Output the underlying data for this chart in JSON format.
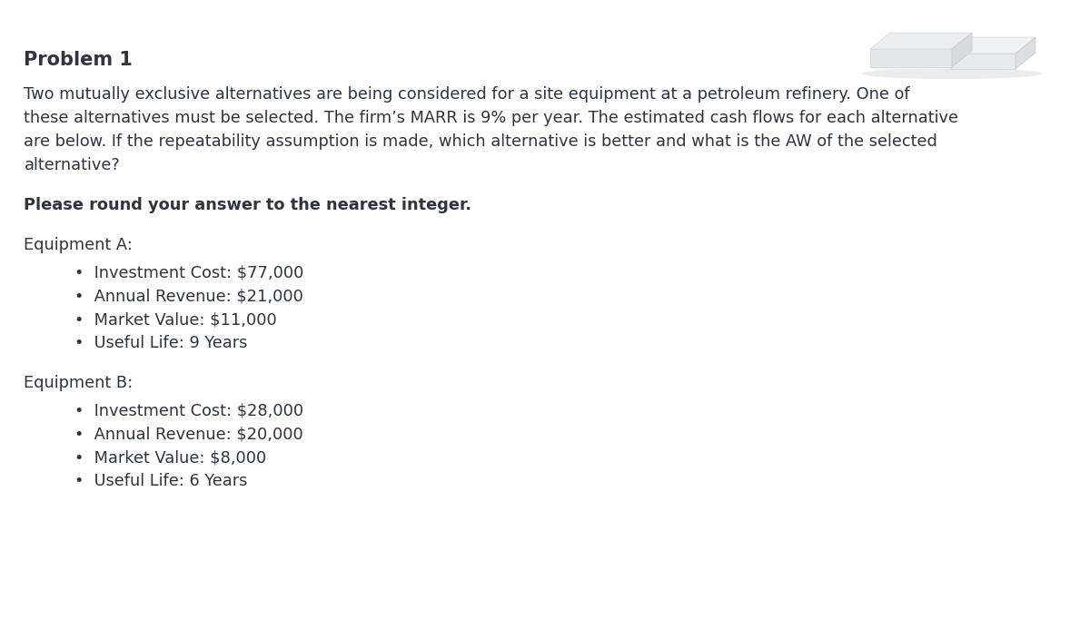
{
  "title": "Problem 1",
  "intro_lines": [
    "Two mutually exclusive alternatives are being considered for a site equipment at a petroleum refinery. One of",
    "these alternatives must be selected. The firm’s MARR is 9% per year. The estimated cash flows for each alternative",
    "are below. If the repeatability assumption is made, which alternative is better and what is the AW of the selected",
    "alternative?"
  ],
  "bold_line": "Please round your answer to the nearest integer.",
  "equip_a_header": "Equipment A:",
  "equip_a_items": [
    "Investment Cost: $77,000",
    "Annual Revenue: $21,000",
    "Market Value: $11,000",
    "Useful Life: 9 Years"
  ],
  "equip_b_header": "Equipment B:",
  "equip_b_items": [
    "Investment Cost: $28,000",
    "Annual Revenue: $20,000",
    "Market Value: $8,000",
    "Useful Life: 6 Years"
  ],
  "bg_color": "#ffffff",
  "text_color": "#2e3440",
  "title_fontsize": 15,
  "body_fontsize": 12.8,
  "item_fontsize": 12.8
}
